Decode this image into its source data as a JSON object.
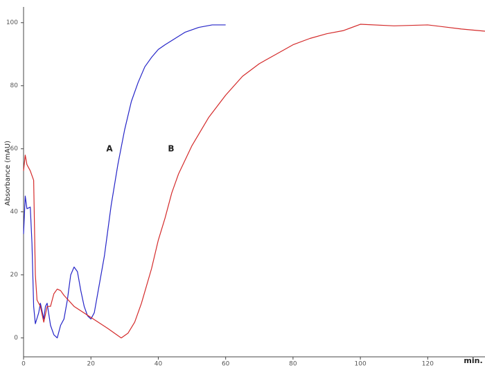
{
  "chart_data": {
    "type": "line",
    "ylabel": "Absorbance (mAU)",
    "xlabel": "min.",
    "xlim": [
      0,
      137
    ],
    "xticks": [
      0,
      20,
      40,
      60,
      80,
      100,
      120
    ],
    "ylim": [
      -6,
      105
    ],
    "yticks": [
      0,
      20,
      40,
      60,
      80,
      100
    ],
    "series": [
      {
        "name": "A",
        "color": "#2424c8",
        "x": [
          0,
          0.5,
          1,
          2,
          2.5,
          3,
          3.5,
          4.5,
          5,
          6,
          6.5,
          7,
          8,
          9,
          10,
          11,
          12,
          13,
          14,
          15,
          16,
          17,
          18,
          19,
          20,
          21,
          22,
          24,
          26,
          28,
          30,
          32,
          34,
          36,
          38,
          40,
          42,
          45,
          48,
          52,
          56,
          60
        ],
        "values": [
          33,
          45,
          41,
          41.5,
          30,
          10,
          4.5,
          8,
          11,
          6,
          10,
          11,
          4,
          1,
          0,
          4,
          6,
          12,
          20,
          22.5,
          21,
          15,
          10,
          7,
          6,
          8,
          14,
          26,
          42,
          55,
          66,
          75,
          81,
          86,
          89,
          91.5,
          93,
          95,
          97,
          98.5,
          99.3,
          99.3
        ]
      },
      {
        "name": "B",
        "color": "#d42a2a",
        "x": [
          0,
          0.5,
          1,
          2,
          3,
          3.5,
          4,
          5,
          6,
          7,
          8,
          9,
          10,
          11,
          12,
          15,
          20,
          25,
          29,
          31,
          33,
          35,
          38,
          40,
          42,
          44,
          46,
          50,
          55,
          60,
          65,
          70,
          75,
          80,
          85,
          90,
          95,
          100,
          110,
          120,
          130,
          137
        ],
        "values": [
          53,
          58,
          55,
          53,
          50,
          20,
          12,
          10,
          5,
          10,
          10,
          14,
          15.5,
          15,
          13.5,
          10,
          6.5,
          3,
          0,
          1.5,
          5,
          11,
          22,
          31,
          38,
          46,
          52,
          61,
          70,
          77,
          83,
          87,
          90,
          93,
          95,
          96.5,
          97.5,
          99.5,
          99,
          99.3,
          98,
          97.3
        ]
      }
    ]
  }
}
